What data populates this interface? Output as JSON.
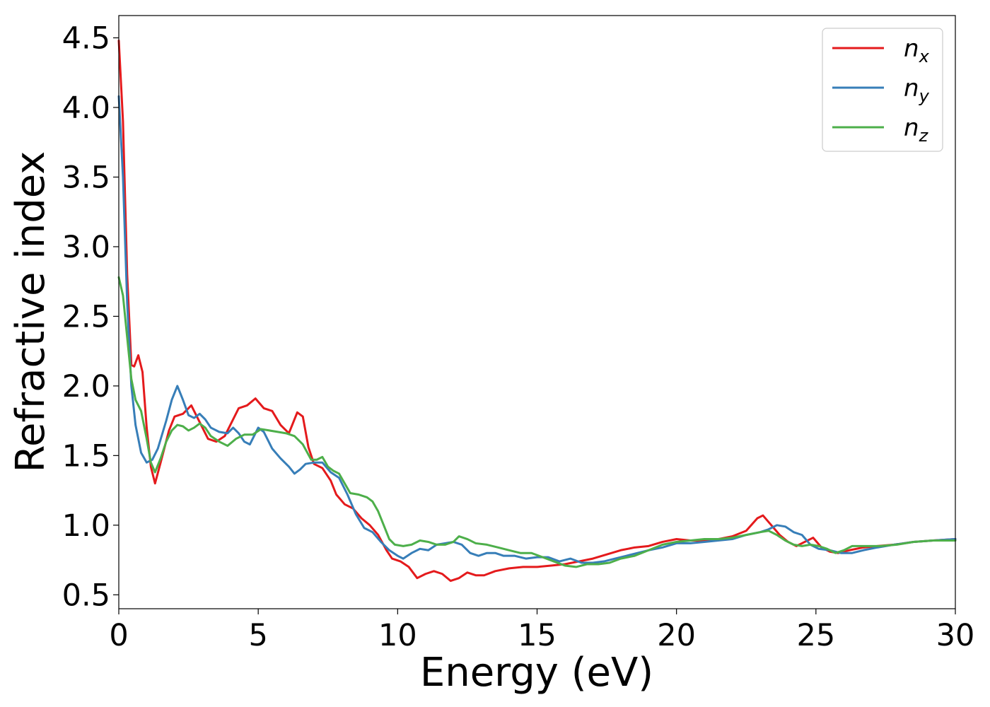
{
  "chart_data": {
    "type": "line",
    "xlabel": "Energy (eV)",
    "ylabel": "Refractive index",
    "xlim": [
      0,
      30
    ],
    "ylim": [
      0.4,
      4.66
    ],
    "x_ticks": [
      "0",
      "5",
      "10",
      "15",
      "20",
      "25",
      "30"
    ],
    "y_ticks": [
      "0.5",
      "1.0",
      "1.5",
      "2.0",
      "2.5",
      "3.0",
      "3.5",
      "4.0",
      "4.5"
    ],
    "grid": false,
    "legend_position": "top-right",
    "series": [
      {
        "name": "n_x",
        "label_base": "n",
        "label_sub": "x",
        "color": "#e41a1c",
        "points": [
          [
            0,
            4.48
          ],
          [
            0.15,
            3.9
          ],
          [
            0.3,
            2.8
          ],
          [
            0.45,
            2.15
          ],
          [
            0.55,
            2.14
          ],
          [
            0.7,
            2.22
          ],
          [
            0.85,
            2.1
          ],
          [
            1.0,
            1.7
          ],
          [
            1.15,
            1.42
          ],
          [
            1.3,
            1.3
          ],
          [
            1.5,
            1.45
          ],
          [
            1.8,
            1.68
          ],
          [
            2.0,
            1.78
          ],
          [
            2.3,
            1.8
          ],
          [
            2.6,
            1.86
          ],
          [
            2.8,
            1.78
          ],
          [
            3.0,
            1.7
          ],
          [
            3.2,
            1.62
          ],
          [
            3.5,
            1.6
          ],
          [
            3.8,
            1.64
          ],
          [
            4.0,
            1.72
          ],
          [
            4.3,
            1.84
          ],
          [
            4.6,
            1.86
          ],
          [
            4.9,
            1.91
          ],
          [
            5.2,
            1.84
          ],
          [
            5.5,
            1.82
          ],
          [
            5.8,
            1.72
          ],
          [
            6.1,
            1.66
          ],
          [
            6.4,
            1.81
          ],
          [
            6.6,
            1.78
          ],
          [
            6.8,
            1.56
          ],
          [
            7.0,
            1.44
          ],
          [
            7.3,
            1.41
          ],
          [
            7.6,
            1.32
          ],
          [
            7.8,
            1.22
          ],
          [
            8.1,
            1.15
          ],
          [
            8.4,
            1.12
          ],
          [
            8.7,
            1.05
          ],
          [
            9.0,
            1.0
          ],
          [
            9.3,
            0.93
          ],
          [
            9.6,
            0.82
          ],
          [
            9.8,
            0.76
          ],
          [
            10.1,
            0.74
          ],
          [
            10.4,
            0.7
          ],
          [
            10.7,
            0.62
          ],
          [
            11.0,
            0.65
          ],
          [
            11.3,
            0.67
          ],
          [
            11.6,
            0.65
          ],
          [
            11.9,
            0.6
          ],
          [
            12.2,
            0.62
          ],
          [
            12.5,
            0.66
          ],
          [
            12.8,
            0.64
          ],
          [
            13.1,
            0.64
          ],
          [
            13.5,
            0.67
          ],
          [
            14.0,
            0.69
          ],
          [
            14.5,
            0.7
          ],
          [
            15.0,
            0.7
          ],
          [
            15.5,
            0.71
          ],
          [
            16.0,
            0.72
          ],
          [
            16.5,
            0.74
          ],
          [
            17.0,
            0.76
          ],
          [
            17.5,
            0.79
          ],
          [
            18.0,
            0.82
          ],
          [
            18.5,
            0.84
          ],
          [
            19.0,
            0.85
          ],
          [
            19.5,
            0.88
          ],
          [
            20.0,
            0.9
          ],
          [
            20.5,
            0.89
          ],
          [
            21.0,
            0.89
          ],
          [
            21.5,
            0.9
          ],
          [
            22.0,
            0.92
          ],
          [
            22.5,
            0.96
          ],
          [
            22.9,
            1.05
          ],
          [
            23.1,
            1.07
          ],
          [
            23.4,
            1.0
          ],
          [
            23.7,
            0.93
          ],
          [
            24.0,
            0.88
          ],
          [
            24.3,
            0.85
          ],
          [
            24.6,
            0.88
          ],
          [
            24.9,
            0.91
          ],
          [
            25.2,
            0.84
          ],
          [
            25.5,
            0.81
          ],
          [
            25.8,
            0.8
          ],
          [
            26.2,
            0.82
          ],
          [
            26.7,
            0.84
          ],
          [
            27.2,
            0.85
          ],
          [
            27.8,
            0.86
          ],
          [
            28.5,
            0.88
          ],
          [
            29.2,
            0.89
          ],
          [
            30.0,
            0.9
          ]
        ]
      },
      {
        "name": "n_y",
        "label_base": "n",
        "label_sub": "y",
        "color": "#377eb8",
        "points": [
          [
            0,
            4.08
          ],
          [
            0.15,
            3.5
          ],
          [
            0.3,
            2.6
          ],
          [
            0.45,
            2.0
          ],
          [
            0.6,
            1.72
          ],
          [
            0.8,
            1.52
          ],
          [
            1.0,
            1.45
          ],
          [
            1.2,
            1.47
          ],
          [
            1.4,
            1.55
          ],
          [
            1.7,
            1.75
          ],
          [
            1.9,
            1.9
          ],
          [
            2.1,
            2.0
          ],
          [
            2.3,
            1.9
          ],
          [
            2.5,
            1.79
          ],
          [
            2.7,
            1.77
          ],
          [
            2.9,
            1.8
          ],
          [
            3.1,
            1.76
          ],
          [
            3.3,
            1.7
          ],
          [
            3.6,
            1.67
          ],
          [
            3.9,
            1.66
          ],
          [
            4.1,
            1.7
          ],
          [
            4.3,
            1.66
          ],
          [
            4.5,
            1.6
          ],
          [
            4.7,
            1.58
          ],
          [
            5.0,
            1.7
          ],
          [
            5.2,
            1.67
          ],
          [
            5.5,
            1.55
          ],
          [
            5.8,
            1.48
          ],
          [
            6.1,
            1.42
          ],
          [
            6.3,
            1.37
          ],
          [
            6.5,
            1.4
          ],
          [
            6.7,
            1.44
          ],
          [
            7.0,
            1.45
          ],
          [
            7.3,
            1.45
          ],
          [
            7.6,
            1.38
          ],
          [
            7.9,
            1.34
          ],
          [
            8.2,
            1.22
          ],
          [
            8.5,
            1.08
          ],
          [
            8.8,
            0.98
          ],
          [
            9.1,
            0.95
          ],
          [
            9.4,
            0.88
          ],
          [
            9.7,
            0.82
          ],
          [
            10.0,
            0.78
          ],
          [
            10.2,
            0.76
          ],
          [
            10.5,
            0.8
          ],
          [
            10.8,
            0.83
          ],
          [
            11.1,
            0.82
          ],
          [
            11.4,
            0.86
          ],
          [
            11.7,
            0.87
          ],
          [
            12.0,
            0.88
          ],
          [
            12.3,
            0.86
          ],
          [
            12.6,
            0.8
          ],
          [
            12.9,
            0.78
          ],
          [
            13.2,
            0.8
          ],
          [
            13.5,
            0.8
          ],
          [
            13.8,
            0.78
          ],
          [
            14.2,
            0.78
          ],
          [
            14.6,
            0.76
          ],
          [
            15.0,
            0.77
          ],
          [
            15.4,
            0.77
          ],
          [
            15.8,
            0.74
          ],
          [
            16.2,
            0.76
          ],
          [
            16.6,
            0.73
          ],
          [
            17.0,
            0.73
          ],
          [
            17.4,
            0.74
          ],
          [
            17.8,
            0.76
          ],
          [
            18.2,
            0.78
          ],
          [
            18.6,
            0.8
          ],
          [
            19.0,
            0.82
          ],
          [
            19.5,
            0.84
          ],
          [
            20.0,
            0.87
          ],
          [
            20.5,
            0.87
          ],
          [
            21.0,
            0.88
          ],
          [
            21.5,
            0.89
          ],
          [
            22.0,
            0.9
          ],
          [
            22.5,
            0.93
          ],
          [
            23.0,
            0.95
          ],
          [
            23.3,
            0.97
          ],
          [
            23.6,
            1.0
          ],
          [
            23.9,
            0.99
          ],
          [
            24.2,
            0.95
          ],
          [
            24.5,
            0.93
          ],
          [
            24.8,
            0.86
          ],
          [
            25.1,
            0.83
          ],
          [
            25.5,
            0.82
          ],
          [
            25.9,
            0.8
          ],
          [
            26.3,
            0.8
          ],
          [
            26.7,
            0.82
          ],
          [
            27.2,
            0.84
          ],
          [
            27.8,
            0.86
          ],
          [
            28.5,
            0.88
          ],
          [
            29.2,
            0.89
          ],
          [
            30.0,
            0.9
          ]
        ]
      },
      {
        "name": "n_z",
        "label_base": "n",
        "label_sub": "z",
        "color": "#4daf4a",
        "points": [
          [
            0,
            2.78
          ],
          [
            0.15,
            2.65
          ],
          [
            0.3,
            2.35
          ],
          [
            0.45,
            2.05
          ],
          [
            0.6,
            1.9
          ],
          [
            0.8,
            1.82
          ],
          [
            1.0,
            1.62
          ],
          [
            1.15,
            1.45
          ],
          [
            1.3,
            1.38
          ],
          [
            1.5,
            1.48
          ],
          [
            1.7,
            1.6
          ],
          [
            1.9,
            1.68
          ],
          [
            2.1,
            1.72
          ],
          [
            2.3,
            1.71
          ],
          [
            2.5,
            1.68
          ],
          [
            2.7,
            1.7
          ],
          [
            2.9,
            1.73
          ],
          [
            3.1,
            1.7
          ],
          [
            3.3,
            1.64
          ],
          [
            3.6,
            1.6
          ],
          [
            3.9,
            1.57
          ],
          [
            4.2,
            1.62
          ],
          [
            4.5,
            1.65
          ],
          [
            4.8,
            1.65
          ],
          [
            5.1,
            1.69
          ],
          [
            5.4,
            1.68
          ],
          [
            5.7,
            1.67
          ],
          [
            6.0,
            1.66
          ],
          [
            6.3,
            1.64
          ],
          [
            6.6,
            1.58
          ],
          [
            6.9,
            1.47
          ],
          [
            7.1,
            1.47
          ],
          [
            7.3,
            1.49
          ],
          [
            7.5,
            1.42
          ],
          [
            7.7,
            1.39
          ],
          [
            7.9,
            1.37
          ],
          [
            8.1,
            1.3
          ],
          [
            8.3,
            1.23
          ],
          [
            8.6,
            1.22
          ],
          [
            8.9,
            1.2
          ],
          [
            9.1,
            1.17
          ],
          [
            9.3,
            1.1
          ],
          [
            9.5,
            1.0
          ],
          [
            9.7,
            0.9
          ],
          [
            9.9,
            0.86
          ],
          [
            10.2,
            0.85
          ],
          [
            10.5,
            0.86
          ],
          [
            10.8,
            0.89
          ],
          [
            11.1,
            0.88
          ],
          [
            11.4,
            0.86
          ],
          [
            11.7,
            0.86
          ],
          [
            12.0,
            0.88
          ],
          [
            12.2,
            0.92
          ],
          [
            12.5,
            0.9
          ],
          [
            12.8,
            0.87
          ],
          [
            13.2,
            0.86
          ],
          [
            13.6,
            0.84
          ],
          [
            14.0,
            0.82
          ],
          [
            14.4,
            0.8
          ],
          [
            14.8,
            0.8
          ],
          [
            15.2,
            0.77
          ],
          [
            15.6,
            0.74
          ],
          [
            16.0,
            0.71
          ],
          [
            16.4,
            0.7
          ],
          [
            16.8,
            0.72
          ],
          [
            17.2,
            0.72
          ],
          [
            17.6,
            0.73
          ],
          [
            18.0,
            0.76
          ],
          [
            18.5,
            0.78
          ],
          [
            19.0,
            0.82
          ],
          [
            19.5,
            0.86
          ],
          [
            20.0,
            0.88
          ],
          [
            20.5,
            0.89
          ],
          [
            21.0,
            0.9
          ],
          [
            21.5,
            0.9
          ],
          [
            22.0,
            0.91
          ],
          [
            22.5,
            0.93
          ],
          [
            23.0,
            0.95
          ],
          [
            23.3,
            0.96
          ],
          [
            23.6,
            0.93
          ],
          [
            23.9,
            0.89
          ],
          [
            24.2,
            0.86
          ],
          [
            24.5,
            0.85
          ],
          [
            24.8,
            0.86
          ],
          [
            25.1,
            0.85
          ],
          [
            25.4,
            0.83
          ],
          [
            25.7,
            0.8
          ],
          [
            26.0,
            0.82
          ],
          [
            26.3,
            0.85
          ],
          [
            26.8,
            0.85
          ],
          [
            27.3,
            0.85
          ],
          [
            27.9,
            0.86
          ],
          [
            28.5,
            0.88
          ],
          [
            29.2,
            0.89
          ],
          [
            30.0,
            0.89
          ]
        ]
      }
    ]
  }
}
